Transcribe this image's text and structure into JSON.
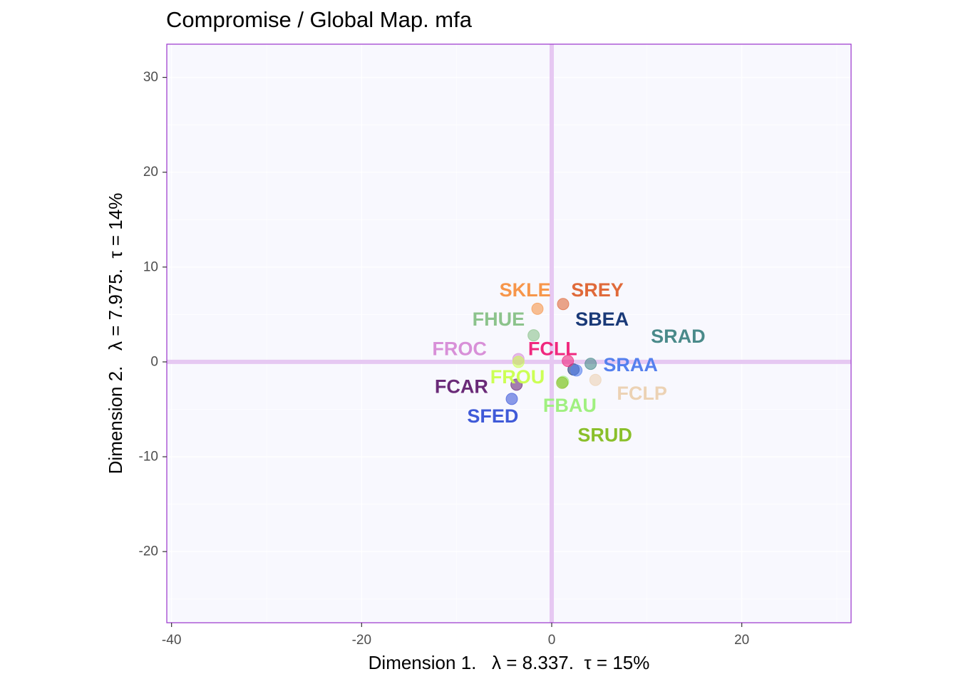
{
  "chart_data": {
    "type": "scatter",
    "title": "Compromise / Global Map. mfa",
    "xlabel": "Dimension 1.   λ = 8.337.  τ = 15%",
    "ylabel": "Dimension 2.   λ = 7.975.  τ = 14%",
    "xlim": [
      -40.5,
      31.5
    ],
    "ylim": [
      -27.5,
      33.5
    ],
    "x_ticks": [
      -40,
      -20,
      0,
      20
    ],
    "y_ticks": [
      -20,
      -10,
      0,
      10,
      20,
      30
    ],
    "x_tick_labels": [
      "-40",
      "-20",
      "0",
      "20"
    ],
    "y_tick_labels": [
      "-20",
      "-10",
      "0",
      "10",
      "20",
      "30"
    ],
    "grid": true,
    "reference_lines": [
      0
    ],
    "colors": {
      "panel_background": "#f8f8fe",
      "panel_border": "#9932cc",
      "grid": "#ffffff",
      "reference_line": "#e6c8f2",
      "title": "#000000",
      "ticks": "#4d4d4d"
    },
    "points": [
      {
        "label": "SKLE",
        "x": -1.5,
        "y": 5.6,
        "label_x": -2.8,
        "label_y": 7.6,
        "color": "#f7964a"
      },
      {
        "label": "SREY",
        "x": 1.2,
        "y": 6.1,
        "label_x": 4.8,
        "label_y": 7.6,
        "color": "#e06a3a"
      },
      {
        "label": "FHUE",
        "x": -1.9,
        "y": 2.8,
        "label_x": -5.6,
        "label_y": 4.5,
        "color": "#8cc38c"
      },
      {
        "label": "SBEA",
        "x": 2.3,
        "y": -0.8,
        "label_x": 5.3,
        "label_y": 4.5,
        "color": "#1a3a78"
      },
      {
        "label": "SRAD",
        "x": 4.1,
        "y": -0.2,
        "label_x": 13.3,
        "label_y": 2.7,
        "color": "#4a8a8a"
      },
      {
        "label": "FCLL",
        "x": 1.7,
        "y": 0.1,
        "label_x": 0.1,
        "label_y": 1.4,
        "color": "#f0287e"
      },
      {
        "label": "FROC",
        "x": -3.5,
        "y": 0.3,
        "label_x": -9.7,
        "label_y": 1.4,
        "color": "#d890d8"
      },
      {
        "label": "SRAA",
        "x": 2.6,
        "y": -0.9,
        "label_x": 8.3,
        "label_y": -0.3,
        "color": "#5580ee"
      },
      {
        "label": "FROU",
        "x": -3.5,
        "y": 0.0,
        "label_x": -3.6,
        "label_y": -1.6,
        "color": "#ccff55"
      },
      {
        "label": "FCAR",
        "x": -3.7,
        "y": -2.4,
        "label_x": -9.5,
        "label_y": -2.6,
        "color": "#6a2a78"
      },
      {
        "label": "FCLP",
        "x": 4.6,
        "y": -1.9,
        "label_x": 9.5,
        "label_y": -3.3,
        "color": "#ecd2b4"
      },
      {
        "label": "FBAU",
        "x": 1.2,
        "y": -2.1,
        "label_x": 1.9,
        "label_y": -4.6,
        "color": "#a0f080"
      },
      {
        "label": "SFED",
        "x": -4.2,
        "y": -3.9,
        "label_x": -6.2,
        "label_y": -5.7,
        "color": "#3f5ad8"
      },
      {
        "label": "SRUD",
        "x": 1.1,
        "y": -2.2,
        "label_x": 5.6,
        "label_y": -7.7,
        "color": "#8abf2a"
      }
    ]
  }
}
